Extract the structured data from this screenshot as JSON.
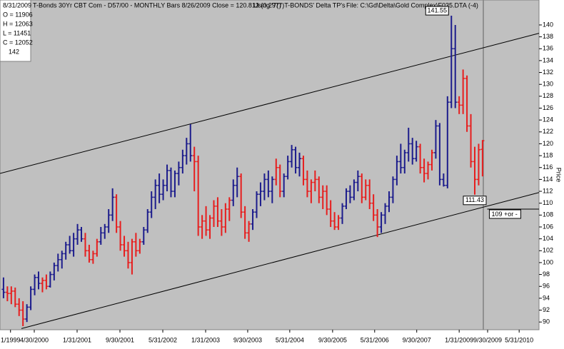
{
  "chart_data": {
    "type": "ohlc",
    "header": [
      "T-Bonds 30Yr CBT Com - D57/00  - MONTHLY Bars  8/26/2009 Close = 120.813 (0.297)",
      "Using '7(7)T-BONDS' Delta TP's",
      "File: C:\\Gd\\Delta\\Gold Complex\\F035.DTA (-4)"
    ],
    "info": [
      "8/31/2009",
      "O = 11906",
      "H = 12063",
      "L = 11451",
      "C = 12052",
      "142"
    ],
    "y_label": "Price",
    "colors": [
      "#1c1c8c",
      "#e61e1e"
    ],
    "ylim": [
      88.7,
      144.2
    ],
    "yticks": [
      90,
      92,
      94,
      96,
      98,
      100,
      102,
      104,
      106,
      108,
      110,
      112,
      114,
      116,
      118,
      120,
      122,
      124,
      126,
      128,
      130,
      132,
      134,
      136,
      138,
      140
    ],
    "xlim": [
      -0.9,
      137.5
    ],
    "xticks": [
      {
        "value": 1.8,
        "label": "1/1999"
      },
      {
        "value": 7.9,
        "label": "4/30/2000"
      },
      {
        "value": 18.9,
        "label": "1/31/2001"
      },
      {
        "value": 29.9,
        "label": "9/30/2001"
      },
      {
        "value": 40.9,
        "label": "5/31/2002"
      },
      {
        "value": 51.9,
        "label": "1/31/2003"
      },
      {
        "value": 62.7,
        "label": "9/30/2003"
      },
      {
        "value": 73.5,
        "label": "5/31/2004"
      },
      {
        "value": 84.5,
        "label": "9/30/2005"
      },
      {
        "value": 95.3,
        "label": "5/31/2006"
      },
      {
        "value": 106.1,
        "label": "9/30/2007"
      },
      {
        "value": 117,
        "label": "1/31/2009"
      },
      {
        "value": 124.3,
        "label": "9/30/2009"
      },
      {
        "value": 132.4,
        "label": "5/31/2010"
      }
    ],
    "bars": [
      [
        95.5,
        97.5,
        94,
        95
      ],
      [
        95,
        96,
        93.5,
        94.8
      ],
      [
        94.8,
        96,
        93,
        95.2
      ],
      [
        95.2,
        95.8,
        92.5,
        93
      ],
      [
        93,
        94,
        91,
        92
      ],
      [
        92,
        93.5,
        89.3,
        90.5
      ],
      [
        90.5,
        93,
        90,
        92.5
      ],
      [
        92.5,
        96,
        92,
        95.5
      ],
      [
        95.5,
        98,
        94.5,
        97.5
      ],
      [
        97.5,
        98.5,
        95.5,
        96.5
      ],
      [
        96.5,
        97.5,
        95,
        97
      ],
      [
        97,
        98,
        95.5,
        96
      ],
      [
        96,
        98.5,
        95.8,
        98
      ],
      [
        98,
        100,
        97,
        99.5
      ],
      [
        99.5,
        101.5,
        98.5,
        100.5
      ],
      [
        100.5,
        102,
        99,
        101.5
      ],
      [
        101.5,
        103.5,
        100.5,
        103
      ],
      [
        103,
        104.5,
        101.5,
        102
      ],
      [
        102,
        105,
        101,
        104
      ],
      [
        104,
        106.5,
        103,
        105.5
      ],
      [
        105.5,
        106,
        103.5,
        104
      ],
      [
        104,
        105,
        101,
        102
      ],
      [
        102,
        103,
        100,
        100.5
      ],
      [
        100.5,
        102,
        99.8,
        101.5
      ],
      [
        101.5,
        104,
        101,
        103.5
      ],
      [
        103.5,
        106,
        103,
        105
      ],
      [
        105,
        106.5,
        104,
        106
      ],
      [
        106,
        109,
        105,
        108
      ],
      [
        108,
        112.5,
        107,
        111
      ],
      [
        111,
        111.5,
        105,
        106
      ],
      [
        106,
        107,
        102,
        103
      ],
      [
        103,
        104.5,
        101,
        102
      ],
      [
        102,
        103.5,
        99,
        100
      ],
      [
        100,
        104,
        98,
        103.5
      ],
      [
        103.5,
        105,
        101,
        102
      ],
      [
        102,
        104,
        101.5,
        103.5
      ],
      [
        103.5,
        106,
        103,
        105.5
      ],
      [
        105.5,
        109,
        105,
        108.5
      ],
      [
        108.5,
        112,
        107.5,
        111
      ],
      [
        111,
        114,
        109,
        113
      ],
      [
        113,
        115,
        110,
        111.5
      ],
      [
        111.5,
        114,
        110.5,
        113
      ],
      [
        113,
        116.5,
        112,
        115.5
      ],
      [
        115.5,
        116,
        111,
        112
      ],
      [
        112,
        115.5,
        111,
        115
      ],
      [
        115,
        117,
        113,
        116
      ],
      [
        116,
        119,
        115,
        118
      ],
      [
        118,
        121,
        116.5,
        120
      ],
      [
        120,
        123.3,
        117,
        118
      ],
      [
        118,
        119.5,
        112,
        117
      ],
      [
        117,
        118,
        104.5,
        106
      ],
      [
        106,
        108,
        104,
        107
      ],
      [
        107,
        109.5,
        104.5,
        105.5
      ],
      [
        105.5,
        108,
        104,
        107.5
      ],
      [
        107.5,
        110.5,
        106,
        109.5
      ],
      [
        109.5,
        111,
        106,
        107
      ],
      [
        107,
        109,
        104.5,
        106
      ],
      [
        106,
        110,
        105,
        109
      ],
      [
        109,
        111,
        107,
        110.5
      ],
      [
        110.5,
        114,
        109.5,
        113
      ],
      [
        113,
        116,
        111,
        114.5
      ],
      [
        114.5,
        115,
        107.5,
        108.5
      ],
      [
        108.5,
        109.5,
        104,
        105
      ],
      [
        105,
        107,
        103.5,
        106.5
      ],
      [
        106.5,
        109,
        105.5,
        108.5
      ],
      [
        108.5,
        112,
        107.5,
        111.5
      ],
      [
        111.5,
        113.5,
        109.5,
        112
      ],
      [
        112,
        115,
        110.5,
        114
      ],
      [
        114,
        115.5,
        111,
        112
      ],
      [
        112,
        114.5,
        110,
        114
      ],
      [
        114,
        117.5,
        113,
        116
      ],
      [
        116,
        116.5,
        111,
        112
      ],
      [
        112,
        115,
        111,
        114.5
      ],
      [
        114.5,
        118,
        114,
        117
      ],
      [
        117,
        119.8,
        116,
        119
      ],
      [
        119,
        119.5,
        115,
        116
      ],
      [
        116,
        118.5,
        114.5,
        117.5
      ],
      [
        117.5,
        118,
        113,
        114
      ],
      [
        114,
        115.5,
        111,
        112
      ],
      [
        112,
        114,
        110,
        113.5
      ],
      [
        113.5,
        115.5,
        112,
        114
      ],
      [
        114,
        114.5,
        110,
        111
      ],
      [
        111,
        113,
        109,
        112
      ],
      [
        112,
        113,
        108,
        109
      ],
      [
        109,
        110.5,
        106,
        107
      ],
      [
        107,
        108.5,
        105.5,
        106
      ],
      [
        106,
        108,
        105.5,
        107.5
      ],
      [
        107.5,
        110,
        106.5,
        109.5
      ],
      [
        109.5,
        112.5,
        109,
        112
      ],
      [
        112,
        113,
        110,
        111
      ],
      [
        111,
        114,
        110.5,
        113.5
      ],
      [
        113.5,
        115.5,
        112,
        114.5
      ],
      [
        114.5,
        115,
        110,
        111
      ],
      [
        111,
        114,
        110.5,
        113
      ],
      [
        113,
        114,
        109,
        110
      ],
      [
        110,
        111.5,
        107,
        108
      ],
      [
        108,
        109,
        104.3,
        106
      ],
      [
        106,
        108.5,
        105,
        108
      ],
      [
        108,
        110,
        106.5,
        109.5
      ],
      [
        109.5,
        112,
        108.5,
        111
      ],
      [
        111,
        114.5,
        110,
        114
      ],
      [
        114,
        118,
        113,
        117
      ],
      [
        117,
        120,
        115,
        116
      ],
      [
        116,
        119,
        115,
        118.5
      ],
      [
        118.5,
        122.7,
        117,
        120
      ],
      [
        120,
        121,
        116.5,
        117.5
      ],
      [
        117.5,
        120.5,
        117,
        119.5
      ],
      [
        119.5,
        120,
        115,
        116
      ],
      [
        116,
        117.5,
        113.5,
        115
      ],
      [
        115,
        117,
        114,
        116.5
      ],
      [
        116.5,
        119,
        115.5,
        118.5
      ],
      [
        118.5,
        124,
        117.5,
        123
      ],
      [
        123,
        123.5,
        113,
        114
      ],
      [
        114,
        115,
        112.8,
        113
      ],
      [
        113,
        128,
        112.5,
        127
      ],
      [
        127,
        141.55,
        126,
        136
      ],
      [
        136,
        140,
        126,
        127
      ],
      [
        127,
        128,
        125,
        126.5
      ],
      [
        126.5,
        132.5,
        125,
        131
      ],
      [
        131,
        131.5,
        122,
        123
      ],
      [
        123,
        125,
        116,
        117
      ],
      [
        117,
        119.5,
        111.43,
        114
      ],
      [
        114,
        120,
        113,
        119
      ],
      [
        119.06,
        120.63,
        114.51,
        120.52
      ]
    ],
    "color_index": [
      0,
      1,
      1,
      1,
      1,
      1,
      0,
      0,
      0,
      0,
      1,
      1,
      0,
      0,
      0,
      0,
      0,
      0,
      0,
      0,
      0,
      1,
      1,
      1,
      1,
      0,
      0,
      0,
      0,
      1,
      1,
      1,
      1,
      1,
      1,
      1,
      0,
      0,
      0,
      0,
      0,
      0,
      0,
      0,
      0,
      0,
      0,
      0,
      0,
      1,
      1,
      1,
      1,
      1,
      1,
      1,
      1,
      1,
      1,
      0,
      0,
      1,
      1,
      1,
      0,
      0,
      0,
      0,
      0,
      0,
      1,
      1,
      0,
      0,
      0,
      0,
      0,
      1,
      1,
      1,
      1,
      1,
      1,
      1,
      1,
      1,
      1,
      0,
      0,
      0,
      0,
      0,
      1,
      1,
      1,
      1,
      1,
      0,
      0,
      0,
      0,
      0,
      0,
      0,
      0,
      0,
      0,
      1,
      1,
      1,
      1,
      0,
      0,
      0,
      0,
      0,
      0,
      1,
      1,
      1,
      1,
      1,
      1,
      1
    ],
    "trendlines": [
      {
        "x": [
          -0.9,
          137.5
        ],
        "y": [
          115,
          138.6
        ]
      },
      {
        "x": [
          4.6,
          137.5
        ],
        "y": [
          88.9,
          111.8
        ]
      }
    ],
    "annotations": [
      {
        "value": 141.55,
        "x": 115
      },
      {
        "value": 111.43,
        "x": 121
      }
    ],
    "level": {
      "value": 109,
      "label": "109 +or -",
      "x": 124.2
    }
  }
}
